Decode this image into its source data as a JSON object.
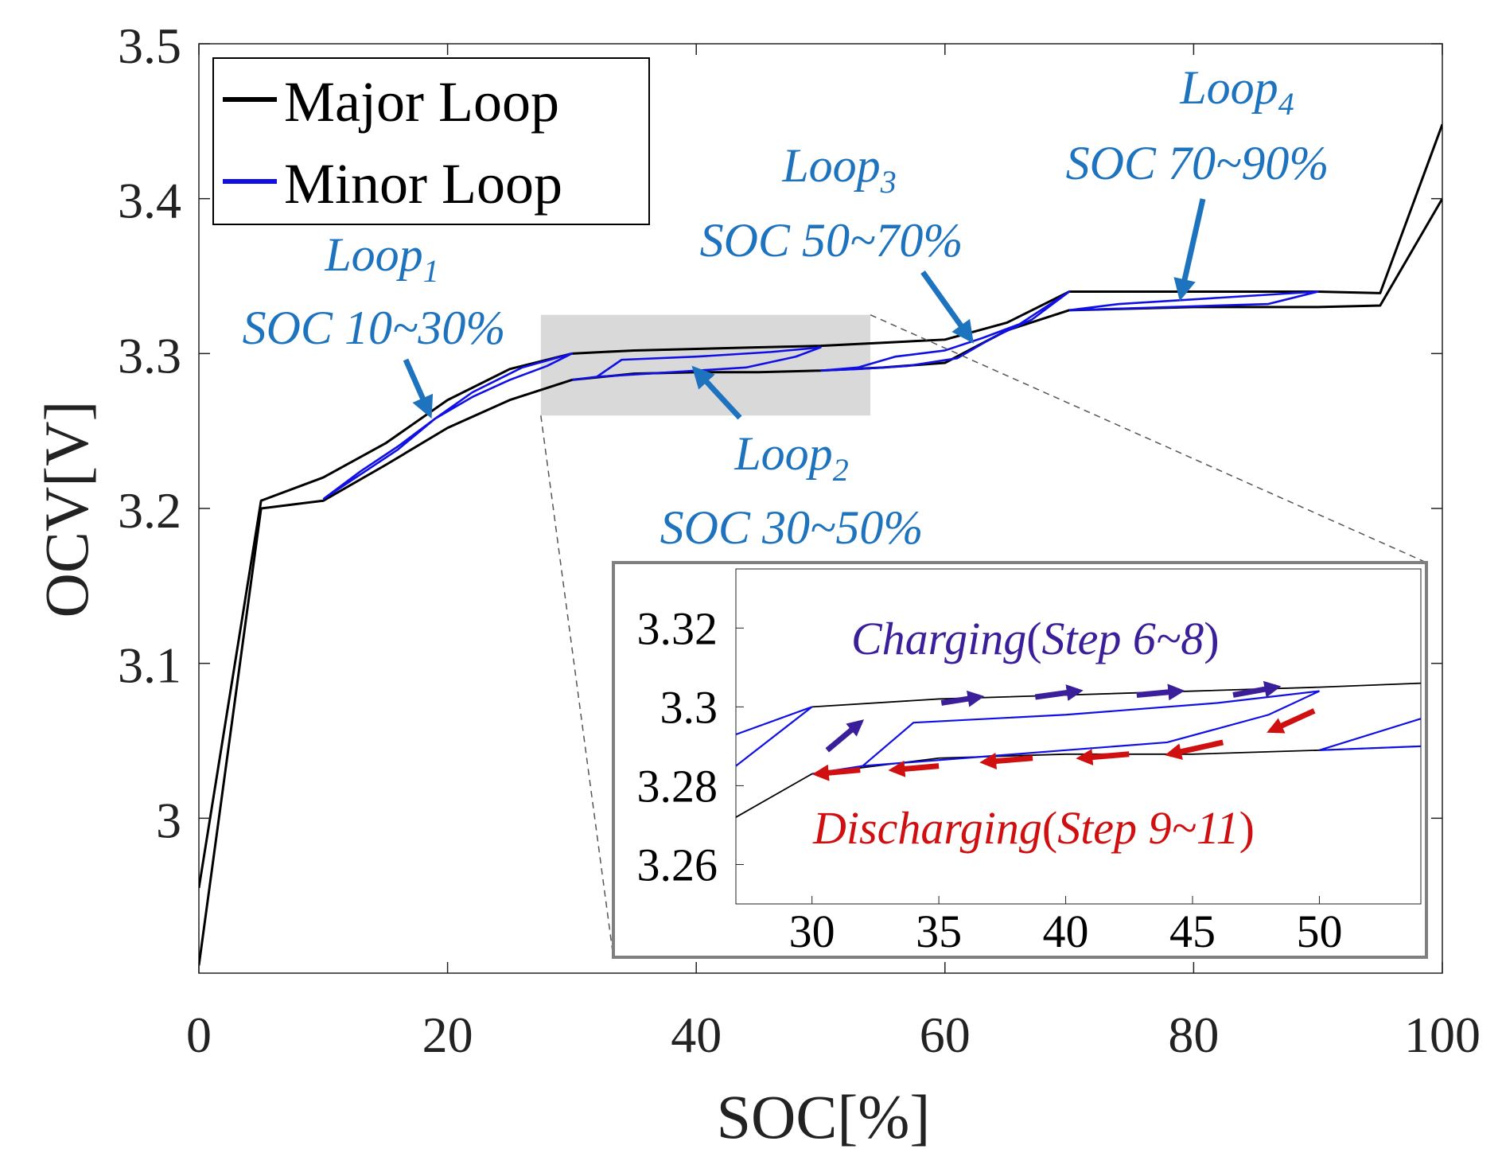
{
  "chart_data": {
    "type": "line",
    "xlabel": "SOC[%]",
    "ylabel": "OCV[V]",
    "xlim": [
      0,
      100
    ],
    "ylim": [
      2.9,
      3.5
    ],
    "xticks": [
      "0",
      "20",
      "40",
      "60",
      "80",
      "100"
    ],
    "yticks": [
      "3",
      "3.1",
      "3.2",
      "3.3",
      "3.4",
      "3.5"
    ],
    "grid": false,
    "legend": {
      "placement": "top-left",
      "entries": [
        {
          "label": "Major Loop",
          "color": "#000000"
        },
        {
          "label": "Minor Loop",
          "color": "#1010e6"
        }
      ]
    },
    "series": [
      {
        "name": "Major Loop",
        "color": "#000000",
        "segments": [
          [
            [
              0,
              2.955
            ],
            [
              5,
              3.205
            ],
            [
              10,
              3.22
            ],
            [
              15,
              3.242
            ],
            [
              20,
              3.27
            ],
            [
              25,
              3.29
            ],
            [
              30,
              3.3
            ],
            [
              35,
              3.302
            ],
            [
              40,
              3.303
            ],
            [
              45,
              3.304
            ],
            [
              50,
              3.305
            ],
            [
              55,
              3.307
            ],
            [
              60,
              3.309
            ],
            [
              65,
              3.32
            ],
            [
              70,
              3.34
            ],
            [
              75,
              3.34
            ],
            [
              80,
              3.34
            ],
            [
              85,
              3.34
            ],
            [
              90,
              3.34
            ],
            [
              95,
              3.339
            ],
            [
              100,
              3.448
            ]
          ],
          [
            [
              0,
              2.905
            ],
            [
              5,
              3.2
            ],
            [
              10,
              3.205
            ],
            [
              15,
              3.228
            ],
            [
              20,
              3.252
            ],
            [
              25,
              3.27
            ],
            [
              30,
              3.283
            ],
            [
              35,
              3.287
            ],
            [
              40,
              3.288
            ],
            [
              45,
              3.288
            ],
            [
              50,
              3.289
            ],
            [
              55,
              3.291
            ],
            [
              60,
              3.294
            ],
            [
              65,
              3.315
            ],
            [
              70,
              3.328
            ],
            [
              75,
              3.329
            ],
            [
              80,
              3.33
            ],
            [
              85,
              3.33
            ],
            [
              90,
              3.33
            ],
            [
              95,
              3.331
            ],
            [
              100,
              3.4
            ]
          ]
        ]
      },
      {
        "name": "Minor Loop",
        "color": "#1010e6",
        "segments": [
          [
            [
              10,
              3.206
            ],
            [
              13,
              3.222
            ],
            [
              16,
              3.238
            ],
            [
              19,
              3.258
            ],
            [
              22,
              3.275
            ],
            [
              26,
              3.291
            ],
            [
              30,
              3.3
            ],
            [
              28,
              3.292
            ],
            [
              25,
              3.283
            ],
            [
              22,
              3.272
            ],
            [
              19,
              3.258
            ],
            [
              16,
              3.24
            ],
            [
              13,
              3.224
            ],
            [
              10,
              3.206
            ]
          ],
          [
            [
              30,
              3.283
            ],
            [
              32,
              3.285
            ],
            [
              34,
              3.296
            ],
            [
              40,
              3.298
            ],
            [
              46,
              3.301
            ],
            [
              50,
              3.304
            ],
            [
              48,
              3.298
            ],
            [
              44,
              3.291
            ],
            [
              40,
              3.289
            ],
            [
              36,
              3.287
            ],
            [
              32,
              3.285
            ],
            [
              30,
              3.283
            ]
          ],
          [
            [
              50,
              3.289
            ],
            [
              53,
              3.291
            ],
            [
              56,
              3.298
            ],
            [
              60,
              3.302
            ],
            [
              63,
              3.31
            ],
            [
              66,
              3.319
            ],
            [
              70,
              3.34
            ],
            [
              67,
              3.322
            ],
            [
              64,
              3.311
            ],
            [
              61,
              3.297
            ],
            [
              57,
              3.292
            ],
            [
              53,
              3.29
            ],
            [
              50,
              3.289
            ]
          ],
          [
            [
              70,
              3.328
            ],
            [
              74,
              3.332
            ],
            [
              78,
              3.334
            ],
            [
              82,
              3.336
            ],
            [
              86,
              3.338
            ],
            [
              90,
              3.34
            ],
            [
              86,
              3.332
            ],
            [
              82,
              3.331
            ],
            [
              78,
              3.33
            ],
            [
              74,
              3.329
            ],
            [
              70,
              3.328
            ]
          ]
        ]
      }
    ],
    "annotations": [
      {
        "id": "loop1",
        "label": "Loop",
        "sub": "1",
        "text": "SOC 10~30%",
        "color": "#1e73be",
        "target": [
          18.5,
          3.262
        ]
      },
      {
        "id": "loop2",
        "label": "Loop",
        "sub": "2",
        "text": "SOC 30~50%",
        "color": "#1e73be",
        "target": [
          40,
          3.289
        ]
      },
      {
        "id": "loop3",
        "label": "Loop",
        "sub": "3",
        "text": "SOC 50~70%",
        "color": "#1e73be",
        "target": [
          62,
          3.31
        ]
      },
      {
        "id": "loop4",
        "label": "Loop",
        "sub": "4",
        "text": "SOC 70~90%",
        "color": "#1e73be",
        "target": [
          79,
          3.338
        ]
      }
    ],
    "zoom_region": {
      "xlim": [
        27.5,
        54
      ],
      "ylim": [
        3.26,
        3.325
      ]
    },
    "inset": {
      "xlim": [
        27,
        54
      ],
      "ylim": [
        3.25,
        3.335
      ],
      "xticks": [
        "30",
        "35",
        "40",
        "45",
        "50"
      ],
      "yticks": [
        "3.26",
        "3.28",
        "3.3",
        "3.32"
      ],
      "major_segments": [
        [
          [
            27,
            3.272
          ],
          [
            30,
            3.283
          ],
          [
            35,
            3.287
          ],
          [
            40,
            3.288
          ],
          [
            45,
            3.288
          ],
          [
            50,
            3.289
          ],
          [
            54,
            3.29
          ]
        ],
        [
          [
            30,
            3.3
          ],
          [
            35,
            3.302
          ],
          [
            40,
            3.303
          ],
          [
            45,
            3.304
          ],
          [
            50,
            3.305
          ],
          [
            54,
            3.306
          ]
        ]
      ],
      "minor_segments": [
        [
          [
            27,
            3.285
          ],
          [
            30,
            3.3
          ]
        ],
        [
          [
            27,
            3.293
          ],
          [
            30,
            3.3
          ]
        ],
        [
          [
            30,
            3.283
          ],
          [
            32,
            3.285
          ],
          [
            34,
            3.296
          ],
          [
            40,
            3.298
          ],
          [
            46,
            3.301
          ],
          [
            50,
            3.304
          ],
          [
            48,
            3.298
          ],
          [
            44,
            3.291
          ],
          [
            40,
            3.289
          ],
          [
            36,
            3.287
          ],
          [
            32,
            3.285
          ],
          [
            30,
            3.283
          ]
        ],
        [
          [
            50,
            3.289
          ],
          [
            54,
            3.297
          ]
        ],
        [
          [
            50,
            3.289
          ],
          [
            54,
            3.29
          ]
        ]
      ],
      "charging_label": "Charging(Step 6~8)",
      "charging_color": "#3b1f9a",
      "charging_arrows": [
        [
          [
            30.6,
            3.289
          ],
          [
            31.9,
            3.296
          ]
        ],
        [
          [
            35.1,
            3.301
          ],
          [
            36.6,
            3.3025
          ]
        ],
        [
          [
            38.8,
            3.3025
          ],
          [
            40.5,
            3.304
          ]
        ],
        [
          [
            42.8,
            3.303
          ],
          [
            44.5,
            3.304
          ]
        ],
        [
          [
            46.6,
            3.303
          ],
          [
            48.3,
            3.305
          ]
        ]
      ],
      "discharging_label": "Discharging(Step 9~11)",
      "discharging_color": "#d01010",
      "discharging_arrows": [
        [
          [
            49.8,
            3.299
          ],
          [
            48.1,
            3.294
          ]
        ],
        [
          [
            46.2,
            3.291
          ],
          [
            44.1,
            3.288
          ]
        ],
        [
          [
            42.5,
            3.288
          ],
          [
            40.6,
            3.287
          ]
        ],
        [
          [
            38.7,
            3.287
          ],
          [
            36.8,
            3.286
          ]
        ],
        [
          [
            35.0,
            3.285
          ],
          [
            33.2,
            3.284
          ]
        ],
        [
          [
            31.9,
            3.284
          ],
          [
            30.2,
            3.283
          ]
        ]
      ]
    }
  }
}
